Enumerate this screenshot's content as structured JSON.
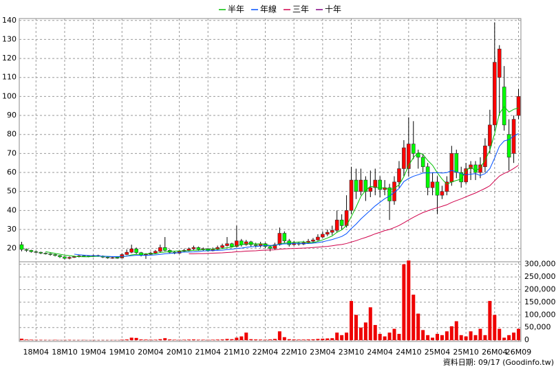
{
  "chart_data": [
    {
      "type": "candlestick",
      "categories": [
        null,
        null,
        null,
        "18M04",
        null,
        null,
        null,
        null,
        null,
        "18M10",
        null,
        null,
        null,
        null,
        null,
        "19M04",
        null,
        null,
        null,
        null,
        null,
        "19M10",
        null,
        null,
        null,
        null,
        null,
        "20M04",
        null,
        null,
        null,
        null,
        null,
        "20M10",
        null,
        null,
        null,
        null,
        null,
        "21M04",
        null,
        null,
        null,
        null,
        null,
        "21M10",
        null,
        null,
        null,
        null,
        null,
        "22M04",
        null,
        null,
        null,
        null,
        null,
        "22M10",
        null,
        null,
        null,
        null,
        null,
        "23M04",
        null,
        null,
        null,
        null,
        null,
        "23M10",
        null,
        null,
        null,
        null,
        null,
        "24M04",
        null,
        null,
        null,
        null,
        null,
        "24M10",
        null,
        null,
        null,
        null,
        null,
        "25M04",
        null,
        null,
        null,
        null,
        null,
        "25M10",
        null,
        null,
        null,
        null,
        null,
        "26M04",
        null,
        null,
        null,
        null,
        "26M09"
      ],
      "open": [
        22,
        19.5,
        19,
        18.3,
        18,
        17.5,
        17.2,
        16.8,
        16.3,
        15.6,
        14.8,
        15.3,
        15.7,
        16.1,
        16,
        15.8,
        16.3,
        16,
        15.4,
        15,
        15.2,
        15,
        16.8,
        18,
        19.8,
        17.8,
        16.5,
        16.9,
        17.6,
        18.5,
        20.5,
        19,
        18,
        17.5,
        18.5,
        19,
        19.8,
        20.5,
        19.5,
        19.8,
        18.8,
        19.5,
        20.5,
        21.5,
        22.5,
        21,
        24,
        22,
        23.5,
        22,
        21.5,
        22.5,
        21,
        20,
        22,
        28,
        24,
        22,
        22.8,
        22.3,
        23,
        23.8,
        24.5,
        26,
        27.5,
        28.5,
        29.5,
        35,
        32,
        40,
        56,
        50,
        56,
        50,
        52,
        56,
        51,
        52,
        45,
        55,
        62,
        62,
        75,
        70,
        68,
        63,
        52,
        55,
        48,
        50,
        55,
        70,
        60,
        55,
        62,
        64,
        60,
        63,
        74,
        85,
        110,
        105,
        80,
        70,
        90
      ],
      "high": [
        23.5,
        20,
        19.3,
        18.8,
        18.3,
        17.9,
        17.6,
        17.2,
        16.6,
        16,
        15.8,
        16.2,
        16.6,
        16.5,
        16.3,
        16.7,
        16.7,
        16.3,
        15.8,
        15.6,
        15.6,
        17.5,
        19.5,
        22,
        20.5,
        18.2,
        17.5,
        18.2,
        19.2,
        22,
        26,
        19.5,
        18.5,
        19,
        19.8,
        20.5,
        21.5,
        21,
        20.5,
        20.2,
        20.5,
        21.5,
        22.5,
        26,
        23,
        32,
        25,
        24.5,
        24,
        23,
        23.5,
        23,
        21.5,
        23,
        31,
        29,
        25,
        24,
        23.5,
        24,
        25,
        25.5,
        27.5,
        29,
        30,
        32,
        40,
        38,
        48,
        63,
        62,
        62,
        58,
        61,
        62,
        58,
        56,
        54,
        58,
        66,
        77,
        89,
        87,
        72,
        70,
        65,
        60,
        58,
        53,
        58,
        74,
        72,
        63,
        65,
        66,
        66,
        68,
        78,
        93,
        139,
        127,
        116,
        88,
        90,
        104
      ],
      "low": [
        18.5,
        18.2,
        17.8,
        17.5,
        17,
        16.8,
        16.2,
        15.8,
        15,
        14.2,
        14.3,
        15,
        15.3,
        15.6,
        15.4,
        15.5,
        15.6,
        15,
        14.6,
        14.6,
        14.6,
        14.8,
        16.5,
        17.5,
        17,
        15.8,
        14.5,
        16.5,
        17.2,
        18,
        18.5,
        17.5,
        17,
        17.2,
        18,
        18.5,
        19,
        18.8,
        18.8,
        18.3,
        18.5,
        19,
        20,
        21,
        20.5,
        20.5,
        21,
        21.5,
        21,
        20.5,
        20.5,
        20,
        18.5,
        19.5,
        21.5,
        23,
        21,
        21.5,
        21.5,
        21.8,
        22.5,
        23,
        24,
        25.5,
        26.5,
        27,
        28.5,
        30,
        31,
        38,
        46,
        48,
        45,
        47,
        48,
        47,
        48,
        35,
        43,
        52,
        58,
        58,
        67,
        62,
        60,
        48,
        48,
        38,
        46,
        48,
        53,
        57,
        52,
        54,
        56,
        56,
        57,
        60,
        70,
        82,
        90,
        82,
        61,
        65,
        88
      ],
      "close": [
        19.5,
        19,
        18.3,
        18,
        17.5,
        17.2,
        16.8,
        16.3,
        15.6,
        14.8,
        15.3,
        15.7,
        16.1,
        16,
        15.8,
        16.3,
        16,
        15.4,
        15,
        15.2,
        15,
        16.8,
        18,
        19.8,
        17.8,
        16.5,
        16.9,
        17.6,
        18.5,
        20.5,
        19,
        18,
        17.5,
        18.5,
        19,
        19.8,
        20.5,
        19.5,
        19.8,
        18.8,
        19.5,
        20.5,
        21.5,
        22.5,
        21,
        24,
        22,
        23.5,
        22,
        21.5,
        22.5,
        21,
        20,
        22,
        28,
        24,
        22,
        22.8,
        22.3,
        23,
        23.8,
        24.5,
        26,
        27.5,
        28.5,
        29.5,
        35,
        32,
        40,
        56,
        50,
        56,
        50,
        52,
        56,
        51,
        52,
        45,
        55,
        62,
        73,
        75,
        70,
        68,
        63,
        52,
        55,
        48,
        50,
        55,
        70,
        60,
        55,
        62,
        64,
        60,
        64,
        74,
        85,
        118,
        125,
        85,
        68,
        88,
        100
      ],
      "up_color": "#ff0000",
      "down_color": "#00ff00",
      "series": [
        {
          "name": "半年",
          "color": "#00c000",
          "values": [
            null,
            null,
            null,
            null,
            null,
            18.3,
            17.9,
            17.4,
            17,
            16.5,
            16.2,
            15.9,
            15.7,
            15.6,
            15.6,
            15.8,
            15.9,
            15.9,
            15.8,
            15.7,
            15.5,
            15.6,
            16,
            16.6,
            16.9,
            17,
            17.2,
            17.3,
            17.2,
            17.9,
            18.1,
            18.4,
            18.6,
            18.7,
            18.7,
            18.8,
            19,
            19.1,
            19.4,
            19.5,
            19.6,
            19.7,
            19.9,
            20.4,
            20.7,
            21.5,
            21.9,
            22.4,
            22.6,
            22.4,
            22.4,
            22.2,
            21.5,
            21.5,
            22.5,
            22.8,
            23,
            23.2,
            23.4,
            23.5,
            23.1,
            23.1,
            23.7,
            24.5,
            25.5,
            26.6,
            28.5,
            29.8,
            32.1,
            36.8,
            41.8,
            47.4,
            50.6,
            52.7,
            52.3,
            51.7,
            52,
            50.8,
            51.7,
            53.5,
            57.8,
            63.7,
            67.8,
            70.5,
            69.5,
            66.3,
            63.8,
            59.8,
            56.5,
            53.8,
            55,
            55.8,
            56.5,
            61,
            62.8,
            60.8,
            62.5,
            66.5,
            71.7,
            80.5,
            91,
            94.7,
            91.8,
            93.2,
            94
          ]
        },
        {
          "name": "年線",
          "color": "#0050ff",
          "values": [
            null,
            null,
            null,
            null,
            null,
            null,
            null,
            null,
            null,
            null,
            null,
            17,
            16.7,
            16.5,
            16.3,
            16.2,
            16.1,
            15.9,
            15.8,
            15.7,
            15.7,
            15.8,
            16,
            16.2,
            16.4,
            16.4,
            16.4,
            16.5,
            16.6,
            16.9,
            17.2,
            17.4,
            17.6,
            17.9,
            18.1,
            18.1,
            18.2,
            18.4,
            18.7,
            18.8,
            18.9,
            19,
            19.1,
            19.4,
            19.6,
            20,
            20.2,
            20.6,
            20.9,
            21,
            21.3,
            21.5,
            21.6,
            21.7,
            22.2,
            22.4,
            22.5,
            22.6,
            22.7,
            22.6,
            22.6,
            22.8,
            23.1,
            23.5,
            24.1,
            24.7,
            25.5,
            26.3,
            27.8,
            30.5,
            32.8,
            35.5,
            37.8,
            40.1,
            42.4,
            44.3,
            46.2,
            47.6,
            49.5,
            51.6,
            55.2,
            56.8,
            58,
            58.8,
            59.7,
            59.8,
            59.8,
            59.9,
            59.7,
            59.9,
            61.1,
            60.3,
            59.4,
            58.8,
            59.1,
            59.4,
            58.4,
            59.4,
            62,
            67.6,
            73.8,
            76.6,
            77.3,
            79.1,
            80.5
          ]
        },
        {
          "name": "三年",
          "color": "#d0004a",
          "values": [
            null,
            null,
            null,
            null,
            null,
            null,
            null,
            null,
            null,
            null,
            null,
            null,
            null,
            null,
            null,
            null,
            null,
            null,
            null,
            null,
            null,
            null,
            null,
            null,
            null,
            null,
            null,
            null,
            null,
            null,
            null,
            null,
            null,
            null,
            null,
            17.2,
            17.2,
            17.3,
            17.3,
            17.4,
            17.5,
            17.6,
            17.7,
            17.9,
            18,
            18.3,
            18.4,
            18.6,
            18.7,
            18.8,
            19,
            19.1,
            19.2,
            19.3,
            19.6,
            19.8,
            19.9,
            20,
            20.1,
            20.2,
            20.3,
            20.5,
            20.7,
            20.9,
            21.1,
            21.4,
            21.8,
            22.1,
            22.6,
            23.4,
            24.1,
            25,
            25.8,
            26.7,
            27.7,
            28.5,
            29.4,
            30,
            31,
            32.1,
            33.5,
            35,
            36.4,
            37.7,
            38.9,
            39.8,
            40.7,
            41.4,
            42.2,
            43,
            44.2,
            45.2,
            46.1,
            47.2,
            48.2,
            49.2,
            50.4,
            51.6,
            53,
            55.6,
            58.1,
            59.5,
            60.6,
            62.1,
            63.8
          ]
        },
        {
          "name": "十年",
          "color": "#800080"
        }
      ],
      "ylim": [
        13,
        141
      ],
      "yticks": [
        20,
        30,
        40,
        50,
        60,
        70,
        80,
        90,
        100,
        110,
        120,
        130,
        140
      ],
      "grid": true
    },
    {
      "type": "bar",
      "color": "#ee0000",
      "values": [
        6000,
        2500,
        2000,
        1500,
        1500,
        1200,
        1000,
        1500,
        1000,
        1200,
        1500,
        1000,
        1000,
        1200,
        800,
        1000,
        800,
        1000,
        900,
        1000,
        900,
        2000,
        3000,
        10000,
        9000,
        3000,
        2500,
        2000,
        2000,
        4000,
        8000,
        3000,
        2000,
        1500,
        2000,
        2500,
        3000,
        2000,
        2000,
        1500,
        2000,
        2500,
        3000,
        5000,
        4000,
        10000,
        15000,
        30000,
        4000,
        3000,
        2500,
        2000,
        3000,
        5000,
        35000,
        12000,
        4000,
        3000,
        2500,
        2500,
        3000,
        3500,
        5000,
        6000,
        7000,
        8000,
        30000,
        20000,
        30000,
        155000,
        100000,
        50000,
        70000,
        130000,
        60000,
        25000,
        15000,
        30000,
        45000,
        25000,
        300000,
        315000,
        180000,
        105000,
        40000,
        20000,
        10000,
        25000,
        20000,
        35000,
        55000,
        75000,
        20000,
        15000,
        35000,
        20000,
        45000,
        20000,
        155000,
        100000,
        45000,
        10000,
        20000,
        30000,
        45000
      ],
      "ylim": [
        -5000,
        310000
      ],
      "yticks": [
        0,
        {
          "value": 50000,
          "label": "50,000"
        },
        {
          "value": 100000,
          "label": "100,000"
        },
        {
          "value": 150000,
          "label": "150,000"
        },
        {
          "value": 200000,
          "label": "200,000"
        },
        {
          "value": 250000,
          "label": "250,000"
        },
        {
          "value": 300000,
          "label": "300,000"
        }
      ],
      "grid": true
    }
  ],
  "footer": "資料日期: 09/17 (Goodinfo.tw)"
}
